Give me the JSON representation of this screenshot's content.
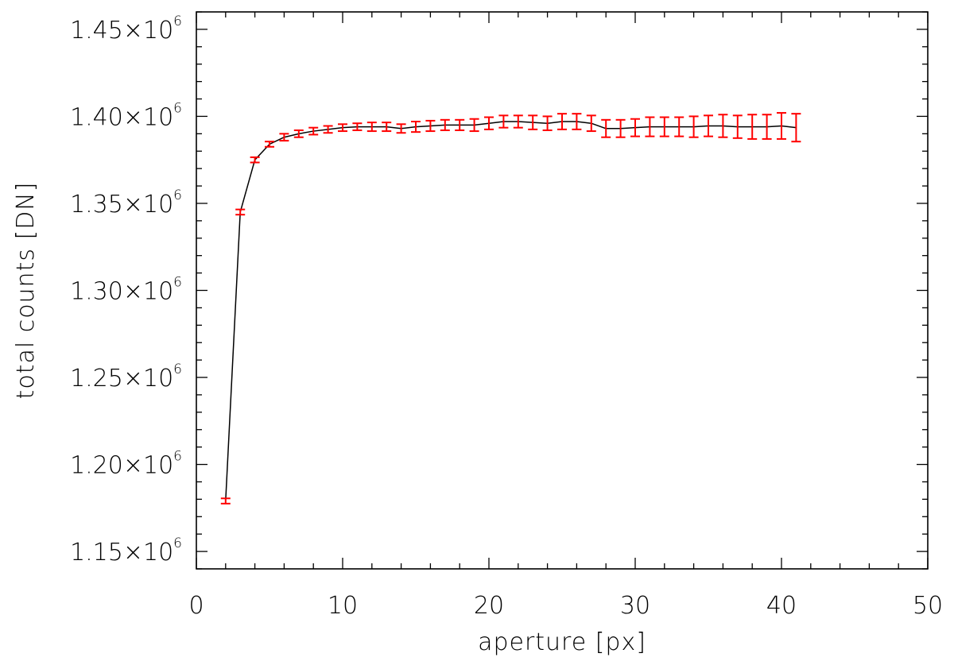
{
  "chart_data": {
    "type": "line",
    "title": "",
    "xlabel": "aperture [px]",
    "ylabel": "total counts [DN]",
    "xlim": [
      0,
      50
    ],
    "ylim": [
      1140000,
      1460000
    ],
    "x_ticks": [
      0,
      10,
      20,
      30,
      40,
      50
    ],
    "x_tick_labels": [
      "0",
      "10",
      "20",
      "30",
      "40",
      "50"
    ],
    "y_ticks": [
      1150000,
      1200000,
      1250000,
      1300000,
      1350000,
      1400000,
      1450000
    ],
    "y_tick_labels": [
      {
        "mantissa": "1.15×10",
        "exponent": "6"
      },
      {
        "mantissa": "1.20×10",
        "exponent": "6"
      },
      {
        "mantissa": "1.25×10",
        "exponent": "6"
      },
      {
        "mantissa": "1.30×10",
        "exponent": "6"
      },
      {
        "mantissa": "1.35×10",
        "exponent": "6"
      },
      {
        "mantissa": "1.40×10",
        "exponent": "6"
      },
      {
        "mantissa": "1.45×10",
        "exponent": "6"
      }
    ],
    "x_minor_step": 2,
    "y_minor_step": 10000,
    "grid": false,
    "colors": {
      "line": "#000000",
      "error_bars": "#ff0000",
      "axes": "#000000"
    },
    "series": [
      {
        "x": [
          2,
          3,
          4,
          5,
          6,
          7,
          8,
          9,
          10,
          11,
          12,
          13,
          14,
          15,
          16,
          17,
          18,
          19,
          20,
          21,
          22,
          23,
          24,
          25,
          26,
          27,
          28,
          29,
          30,
          31,
          32,
          33,
          34,
          35,
          36,
          37,
          38,
          39,
          40,
          41
        ],
        "y": [
          1179000,
          1345000,
          1375000,
          1384000,
          1388000,
          1390000,
          1391500,
          1392500,
          1393500,
          1394000,
          1394000,
          1394000,
          1393000,
          1394000,
          1394500,
          1395000,
          1395000,
          1395000,
          1396000,
          1397000,
          1397000,
          1396500,
          1396000,
          1397000,
          1397000,
          1396000,
          1393000,
          1393000,
          1393500,
          1394000,
          1394000,
          1394000,
          1394000,
          1394500,
          1394500,
          1394000,
          1394000,
          1394000,
          1394500,
          1393500
        ],
        "err": [
          1500,
          1500,
          1500,
          1500,
          2000,
          2000,
          2000,
          2000,
          2000,
          2000,
          2500,
          2500,
          2500,
          3000,
          3000,
          3000,
          3000,
          3500,
          3500,
          3500,
          3500,
          4000,
          4000,
          4500,
          4500,
          4500,
          5000,
          5000,
          5000,
          5500,
          5500,
          5500,
          6000,
          6000,
          6500,
          6500,
          7000,
          7000,
          7500,
          8000
        ]
      }
    ]
  }
}
